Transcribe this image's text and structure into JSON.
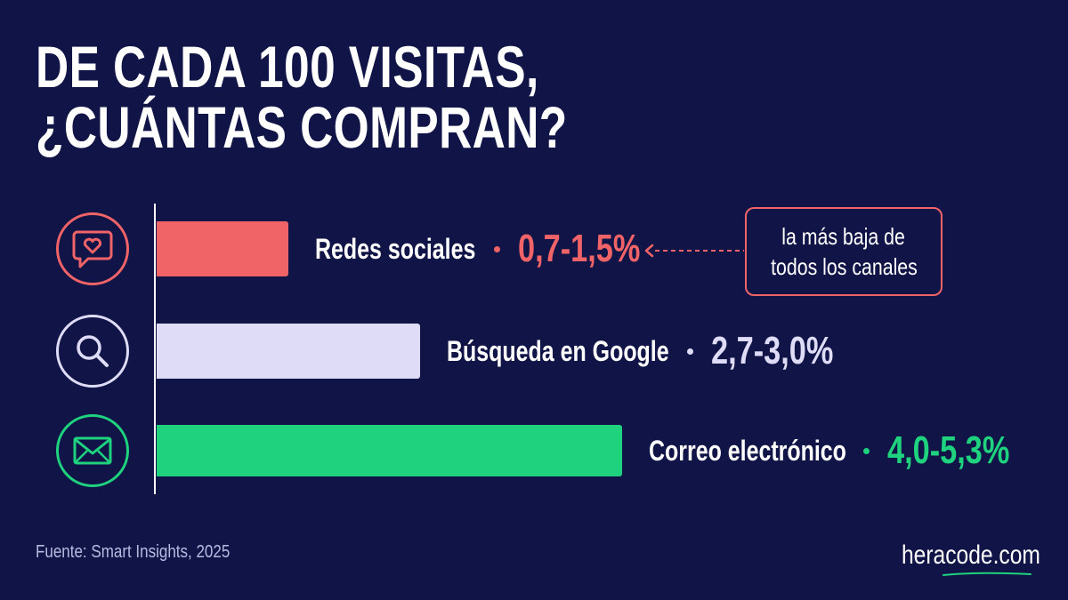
{
  "title_lines": [
    "DE CADA 100 VISITAS,",
    "¿CUÁNTAS COMPRAN?"
  ],
  "chart_data": {
    "type": "bar",
    "orientation": "horizontal",
    "title": "DE CADA 100 VISITAS, ¿CUÁNTAS COMPRAN?",
    "categories": [
      "Redes sociales",
      "Búsqueda en Google",
      "Correo electrónico"
    ],
    "ranges": [
      [
        0.7,
        1.5
      ],
      [
        2.7,
        3.0
      ],
      [
        4.0,
        5.3
      ]
    ],
    "value_labels": [
      "0,7-1,5%",
      "2,7-3,0%",
      "4,0-5,3%"
    ],
    "colors": [
      "#f06468",
      "#dfdcf7",
      "#1ed27e"
    ],
    "icons": [
      "chat-heart-icon",
      "search-icon",
      "mail-icon"
    ],
    "xlim": [
      0,
      7.5
    ],
    "grid": false,
    "annotation": {
      "text_lines": [
        "la más baja de",
        "todos los canales"
      ],
      "target_category": "Redes sociales"
    }
  },
  "source": "Fuente: Smart Insights, 2025",
  "brand": "heracode.com",
  "brand_underline_color": "#1ed27e"
}
